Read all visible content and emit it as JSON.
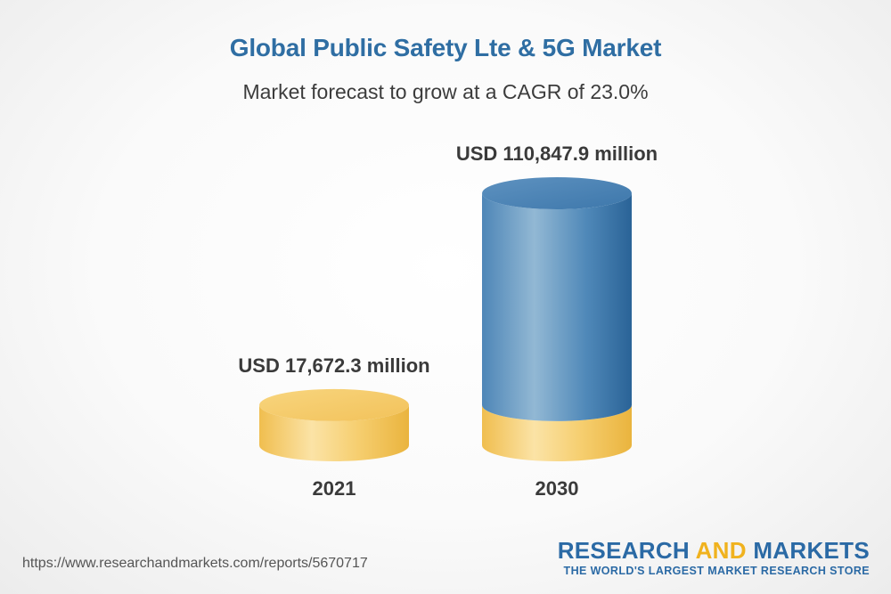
{
  "title": "Global Public Safety Lte & 5G Market",
  "subtitle": "Market forecast to grow at a CAGR of 23.0%",
  "chart_data": {
    "type": "bar",
    "categories": [
      "2021",
      "2030"
    ],
    "values": [
      17672.3,
      110847.9
    ],
    "value_labels": [
      "USD 17,672.3 million",
      "USD 110,847.9 million"
    ],
    "unit": "USD million",
    "colors": {
      "base": "#f5c85e",
      "growth": "#3f7fb3"
    }
  },
  "footer": {
    "url": "https://www.researchandmarkets.com/reports/5670717",
    "brand_part1": "RESEARCH ",
    "brand_part2": "AND",
    "brand_part3": " MARKETS",
    "tagline": "THE WORLD'S LARGEST MARKET RESEARCH STORE"
  }
}
